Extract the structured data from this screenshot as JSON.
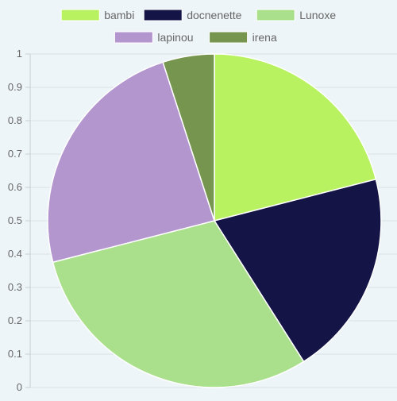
{
  "chart_data": {
    "type": "pie",
    "categories": [
      "bambi",
      "docnenette",
      "Lunoxe",
      "lapinou",
      "irena"
    ],
    "values": [
      0.21,
      0.2,
      0.3,
      0.24,
      0.05
    ],
    "colors": [
      "#b8f260",
      "#141446",
      "#aae08c",
      "#b496cf",
      "#76964f"
    ],
    "ylim": [
      0,
      1
    ],
    "yticks": [
      "0",
      "0.1",
      "0.2",
      "0.3",
      "0.4",
      "0.5",
      "0.6",
      "0.7",
      "0.8",
      "0.9",
      "1"
    ],
    "grid": true,
    "legend_position": "top"
  }
}
